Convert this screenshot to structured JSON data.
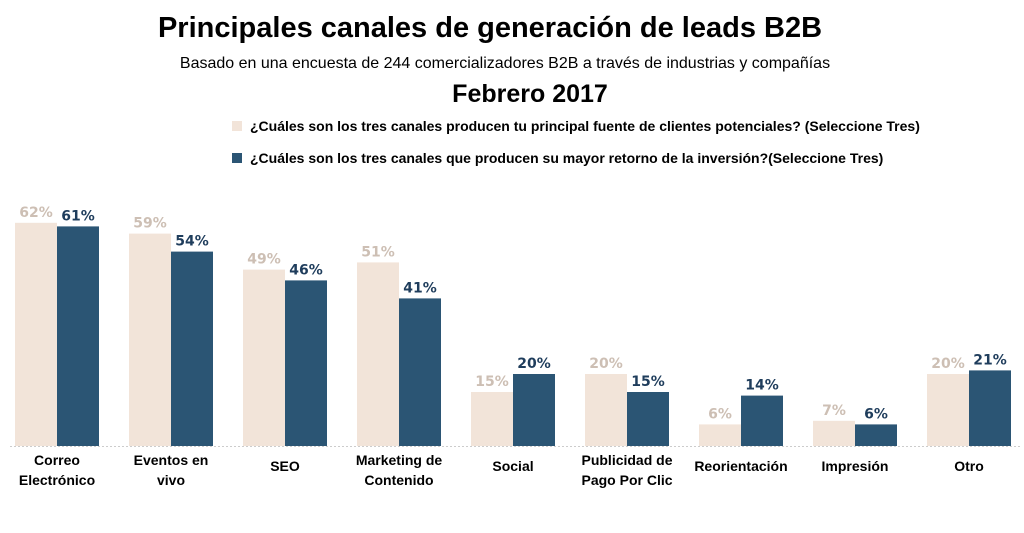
{
  "title": "Principales canales de generación de leads B2B",
  "subtitle": "Basado en una encuesta de 244 comercializadores B2B a través de industrias y compañías",
  "date": "Febrero 2017",
  "chart_data": {
    "type": "bar",
    "categories": [
      "Correo Electrónico",
      "Eventos en vivo",
      "SEO",
      "Marketing de Contenido",
      "Social",
      "Publicidad de Pago Por Clic",
      "Reorientación",
      "Impresión",
      "Otro"
    ],
    "category_lines": [
      [
        "Correo",
        "Electrónico"
      ],
      [
        "Eventos en",
        "vivo"
      ],
      [
        "SEO"
      ],
      [
        "Marketing de",
        "Contenido"
      ],
      [
        "Social"
      ],
      [
        "Publicidad de",
        "Pago Por Clic"
      ],
      [
        "Reorientación"
      ],
      [
        "Impresión"
      ],
      [
        "Otro"
      ]
    ],
    "series": [
      {
        "name": "¿Cuáles son los tres canales producen tu principal fuente de clientes potenciales? (Seleccione Tres)",
        "color": "#f2e4d9",
        "label_color": "#cdbfb4",
        "values": [
          62,
          59,
          49,
          51,
          15,
          20,
          6,
          7,
          20
        ]
      },
      {
        "name": "¿Cuáles son los tres canales que producen su mayor retorno de la inversión?(Seleccione Tres)",
        "color": "#2b5574",
        "label_color": "#1f3d5c",
        "values": [
          61,
          54,
          46,
          41,
          20,
          15,
          14,
          6,
          21
        ]
      }
    ],
    "value_suffix": "%",
    "ylim": [
      0,
      70
    ],
    "grid": false,
    "legend": "top"
  }
}
